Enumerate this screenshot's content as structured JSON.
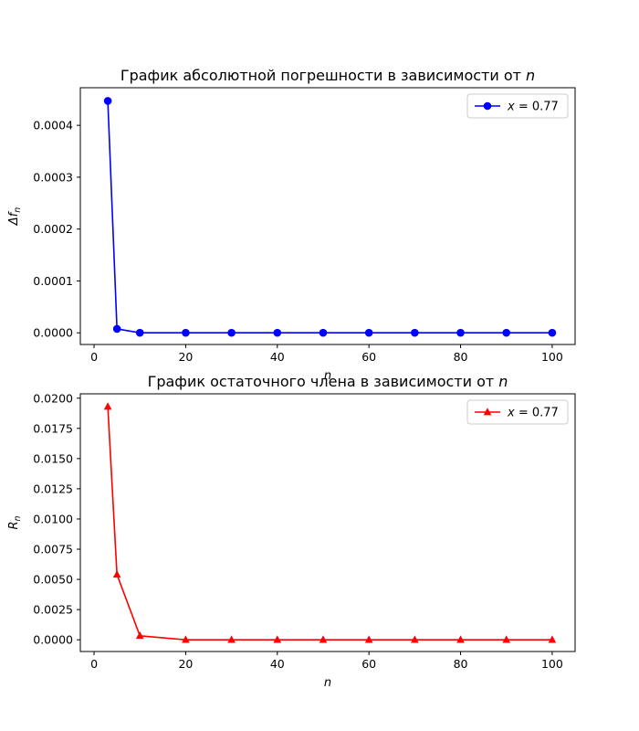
{
  "chart_data": [
    {
      "type": "line",
      "title": "График абсолютной погрешности в зависимости от n",
      "title_text": "График абсолютной погрешности в зависимости от ",
      "title_var": "n",
      "xlabel": "n",
      "ylabel": "Δf_n",
      "xlim": [
        -3,
        105
      ],
      "ylim": [
        -2.25e-05,
        0.0004725
      ],
      "xticks": [
        0,
        20,
        40,
        60,
        80,
        100
      ],
      "yticks": [
        0,
        0.0001,
        0.0002,
        0.0003,
        0.0004
      ],
      "ytick_labels": [
        "0.0000",
        "0.0001",
        "0.0002",
        "0.0003",
        "0.0004"
      ],
      "grid": false,
      "legend_position": "top-right",
      "series": [
        {
          "name": "x = 0.77",
          "color": "#0000ff",
          "marker": "circle",
          "x": [
            3,
            5,
            10,
            20,
            30,
            40,
            50,
            60,
            70,
            80,
            90,
            100
          ],
          "y": [
            0.000447,
            7.5e-06,
            1e-07,
            0,
            0,
            0,
            0,
            0,
            0,
            0,
            0,
            0
          ]
        }
      ]
    },
    {
      "type": "line",
      "title": "График остаточного члена в зависимости от n",
      "title_text": "График остаточного члена в зависимости от ",
      "title_var": "n",
      "xlabel": "n",
      "ylabel": "R_n",
      "xlim": [
        -3,
        105
      ],
      "ylim": [
        -0.00097,
        0.02036
      ],
      "xticks": [
        0,
        20,
        40,
        60,
        80,
        100
      ],
      "yticks": [
        0,
        0.0025,
        0.005,
        0.0075,
        0.01,
        0.0125,
        0.015,
        0.0175,
        0.02
      ],
      "ytick_labels": [
        "0.0000",
        "0.0025",
        "0.0050",
        "0.0075",
        "0.0100",
        "0.0125",
        "0.0150",
        "0.0175",
        "0.0200"
      ],
      "grid": false,
      "legend_position": "top-right",
      "series": [
        {
          "name": "x = 0.77",
          "color": "#ff0000",
          "marker": "triangle-up",
          "x": [
            3,
            5,
            10,
            20,
            30,
            40,
            50,
            60,
            70,
            80,
            90,
            100
          ],
          "y": [
            0.0193,
            0.0054,
            0.00033,
            1.2e-06,
            0,
            0,
            0,
            0,
            0,
            0,
            0,
            0
          ]
        }
      ]
    }
  ]
}
